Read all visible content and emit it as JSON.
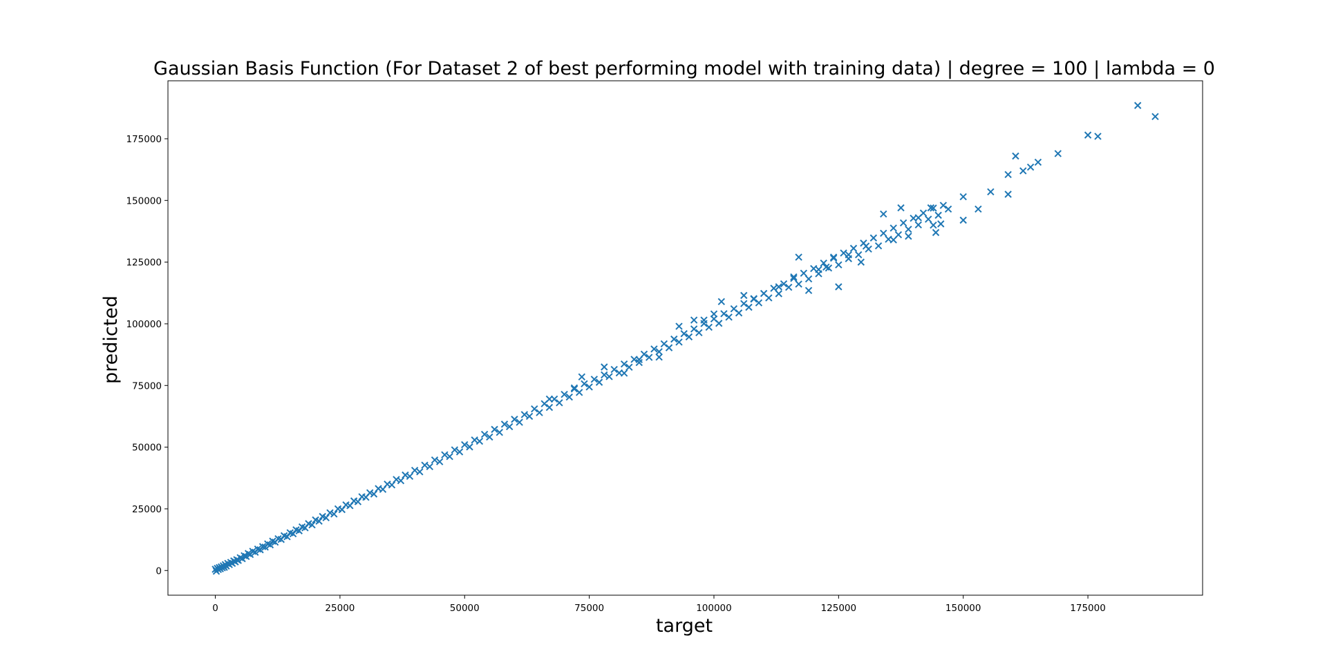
{
  "chart_data": {
    "type": "scatter",
    "title": "Gaussian Basis Function (For Dataset 2 of best performing model with training data) | degree = 100 | lambda = 0",
    "xlabel": "target",
    "ylabel": "predicted",
    "xlim": [
      -9500,
      198000
    ],
    "ylim": [
      -10000,
      198500
    ],
    "xticks": [
      0,
      25000,
      50000,
      75000,
      100000,
      125000,
      150000,
      175000
    ],
    "yticks": [
      0,
      25000,
      50000,
      75000,
      100000,
      125000,
      150000,
      175000
    ],
    "xtick_labels": [
      "0",
      "25000",
      "50000",
      "75000",
      "100000",
      "125000",
      "150000",
      "175000"
    ],
    "ytick_labels": [
      "0",
      "25000",
      "50000",
      "75000",
      "100000",
      "125000",
      "150000",
      "175000"
    ],
    "grid": false,
    "legend": "none",
    "marker": "x",
    "color": "#1f77b4",
    "series": [
      {
        "points": [
          [
            0,
            500
          ],
          [
            200,
            -300
          ],
          [
            400,
            900
          ],
          [
            600,
            400
          ],
          [
            800,
            1200
          ],
          [
            1000,
            700
          ],
          [
            1200,
            1500
          ],
          [
            1400,
            1100
          ],
          [
            1600,
            1900
          ],
          [
            1800,
            1300
          ],
          [
            2000,
            2400
          ],
          [
            2200,
            1800
          ],
          [
            2500,
            2900
          ],
          [
            2800,
            2400
          ],
          [
            3100,
            3300
          ],
          [
            3400,
            2900
          ],
          [
            3700,
            3900
          ],
          [
            4000,
            3500
          ],
          [
            4300,
            4400
          ],
          [
            4600,
            4100
          ],
          [
            5000,
            5200
          ],
          [
            5400,
            4800
          ],
          [
            5800,
            6000
          ],
          [
            6200,
            5700
          ],
          [
            6600,
            6900
          ],
          [
            7000,
            6500
          ],
          [
            7500,
            7800
          ],
          [
            8000,
            7400
          ],
          [
            8500,
            8700
          ],
          [
            9000,
            8400
          ],
          [
            9500,
            9700
          ],
          [
            10000,
            9500
          ],
          [
            10500,
            10800
          ],
          [
            11000,
            10400
          ],
          [
            11500,
            11900
          ],
          [
            12000,
            11500
          ],
          [
            12600,
            12900
          ],
          [
            13200,
            12600
          ],
          [
            13800,
            14100
          ],
          [
            14400,
            13700
          ],
          [
            15000,
            15300
          ],
          [
            15600,
            14900
          ],
          [
            16200,
            16500
          ],
          [
            16800,
            16100
          ],
          [
            17400,
            17700
          ],
          [
            18000,
            17300
          ],
          [
            18700,
            19000
          ],
          [
            19400,
            18500
          ],
          [
            20100,
            20500
          ],
          [
            20800,
            20000
          ],
          [
            21500,
            21900
          ],
          [
            22200,
            21400
          ],
          [
            23000,
            23400
          ],
          [
            23800,
            22900
          ],
          [
            24600,
            25000
          ],
          [
            25400,
            24700
          ],
          [
            26200,
            26600
          ],
          [
            27000,
            26300
          ],
          [
            27800,
            28200
          ],
          [
            28600,
            27900
          ],
          [
            29400,
            29900
          ],
          [
            30200,
            29700
          ],
          [
            31000,
            31500
          ],
          [
            31800,
            31000
          ],
          [
            32700,
            33200
          ],
          [
            33600,
            32900
          ],
          [
            34500,
            35000
          ],
          [
            35400,
            34700
          ],
          [
            36300,
            36900
          ],
          [
            37200,
            36400
          ],
          [
            38100,
            38700
          ],
          [
            39000,
            38200
          ],
          [
            40000,
            40600
          ],
          [
            41000,
            40000
          ],
          [
            42000,
            42700
          ],
          [
            43000,
            42100
          ],
          [
            44000,
            44800
          ],
          [
            45000,
            44100
          ],
          [
            46000,
            46900
          ],
          [
            47000,
            46200
          ],
          [
            48000,
            48900
          ],
          [
            49000,
            48100
          ],
          [
            50000,
            51000
          ],
          [
            51000,
            50100
          ],
          [
            52000,
            52900
          ],
          [
            53000,
            52400
          ],
          [
            54000,
            55200
          ],
          [
            55000,
            54100
          ],
          [
            56000,
            57200
          ],
          [
            57000,
            56000
          ],
          [
            58000,
            59300
          ],
          [
            59000,
            58300
          ],
          [
            60000,
            61300
          ],
          [
            61000,
            60100
          ],
          [
            62000,
            63200
          ],
          [
            63000,
            62500
          ],
          [
            64000,
            65500
          ],
          [
            65000,
            64000
          ],
          [
            66000,
            67600
          ],
          [
            67000,
            66100
          ],
          [
            68000,
            69500
          ],
          [
            69000,
            68000
          ],
          [
            70000,
            71400
          ],
          [
            71000,
            70300
          ],
          [
            72000,
            73600
          ],
          [
            73000,
            72200
          ],
          [
            74000,
            75700
          ],
          [
            75000,
            74400
          ],
          [
            76000,
            77500
          ],
          [
            77000,
            76300
          ],
          [
            78000,
            79300
          ],
          [
            79000,
            78600
          ],
          [
            80000,
            81500
          ],
          [
            81000,
            80100
          ],
          [
            82000,
            83700
          ],
          [
            83000,
            82400
          ],
          [
            84000,
            85600
          ],
          [
            85000,
            84300
          ],
          [
            86000,
            87700
          ],
          [
            87000,
            86400
          ],
          [
            88000,
            89800
          ],
          [
            89000,
            88700
          ],
          [
            90000,
            91900
          ],
          [
            91000,
            90300
          ],
          [
            92000,
            93800
          ],
          [
            93000,
            92600
          ],
          [
            94000,
            96000
          ],
          [
            95000,
            94700
          ],
          [
            96000,
            97900
          ],
          [
            97000,
            96400
          ],
          [
            98000,
            100100
          ],
          [
            99000,
            98600
          ],
          [
            100000,
            102000
          ],
          [
            101000,
            100200
          ],
          [
            102000,
            104100
          ],
          [
            103000,
            102700
          ],
          [
            104000,
            106100
          ],
          [
            105000,
            104400
          ],
          [
            106000,
            108200
          ],
          [
            107000,
            106700
          ],
          [
            108000,
            110200
          ],
          [
            109000,
            108500
          ],
          [
            110000,
            112300
          ],
          [
            111000,
            110500
          ],
          [
            112000,
            114400
          ],
          [
            113000,
            112200
          ],
          [
            114000,
            116200
          ],
          [
            115000,
            114800
          ],
          [
            116000,
            118400
          ],
          [
            117000,
            116100
          ],
          [
            118000,
            120500
          ],
          [
            119000,
            118200
          ],
          [
            120000,
            122400
          ],
          [
            121000,
            120300
          ],
          [
            122000,
            124600
          ],
          [
            123000,
            122600
          ],
          [
            124000,
            126600
          ],
          [
            125000,
            123900
          ],
          [
            126000,
            128700
          ],
          [
            127000,
            126400
          ],
          [
            128000,
            130600
          ],
          [
            129000,
            128000
          ],
          [
            130000,
            132700
          ],
          [
            131000,
            130300
          ],
          [
            132000,
            134800
          ],
          [
            133000,
            131600
          ],
          [
            134000,
            136700
          ],
          [
            135000,
            134300
          ],
          [
            136000,
            138800
          ],
          [
            137000,
            136100
          ],
          [
            138000,
            140900
          ],
          [
            139000,
            138300
          ],
          [
            140000,
            142800
          ],
          [
            141000,
            140100
          ],
          [
            142000,
            144900
          ],
          [
            143000,
            142400
          ],
          [
            144000,
            146900
          ],
          [
            145000,
            144000
          ],
          [
            146000,
            148000
          ],
          [
            147000,
            146500
          ],
          [
            67000,
            69500
          ],
          [
            72000,
            74000
          ],
          [
            73500,
            78500
          ],
          [
            78000,
            82500
          ],
          [
            82000,
            80000
          ],
          [
            85000,
            85500
          ],
          [
            89000,
            86500
          ],
          [
            93000,
            99000
          ],
          [
            96000,
            101500
          ],
          [
            98000,
            101500
          ],
          [
            100000,
            104000
          ],
          [
            101500,
            109000
          ],
          [
            106000,
            111500
          ],
          [
            108000,
            110000
          ],
          [
            113000,
            115000
          ],
          [
            116000,
            119000
          ],
          [
            117000,
            127000
          ],
          [
            119000,
            113500
          ],
          [
            121000,
            122000
          ],
          [
            122500,
            123000
          ],
          [
            124000,
            127000
          ],
          [
            125000,
            115000
          ],
          [
            127000,
            128000
          ],
          [
            129500,
            125000
          ],
          [
            130500,
            131500
          ],
          [
            134000,
            144500
          ],
          [
            136000,
            134000
          ],
          [
            137500,
            147000
          ],
          [
            139000,
            135500
          ],
          [
            141000,
            143000
          ],
          [
            143500,
            147000
          ],
          [
            144000,
            140000
          ],
          [
            144500,
            137000
          ],
          [
            145500,
            140500
          ],
          [
            150000,
            151500
          ],
          [
            150000,
            142000
          ],
          [
            153000,
            146500
          ],
          [
            155500,
            153500
          ],
          [
            159000,
            160500
          ],
          [
            159000,
            152500
          ],
          [
            160500,
            168000
          ],
          [
            162000,
            162000
          ],
          [
            163500,
            163500
          ],
          [
            165000,
            165500
          ],
          [
            169000,
            169000
          ],
          [
            175000,
            176500
          ],
          [
            177000,
            176000
          ],
          [
            185000,
            188500
          ],
          [
            188500,
            184000
          ]
        ]
      }
    ]
  }
}
